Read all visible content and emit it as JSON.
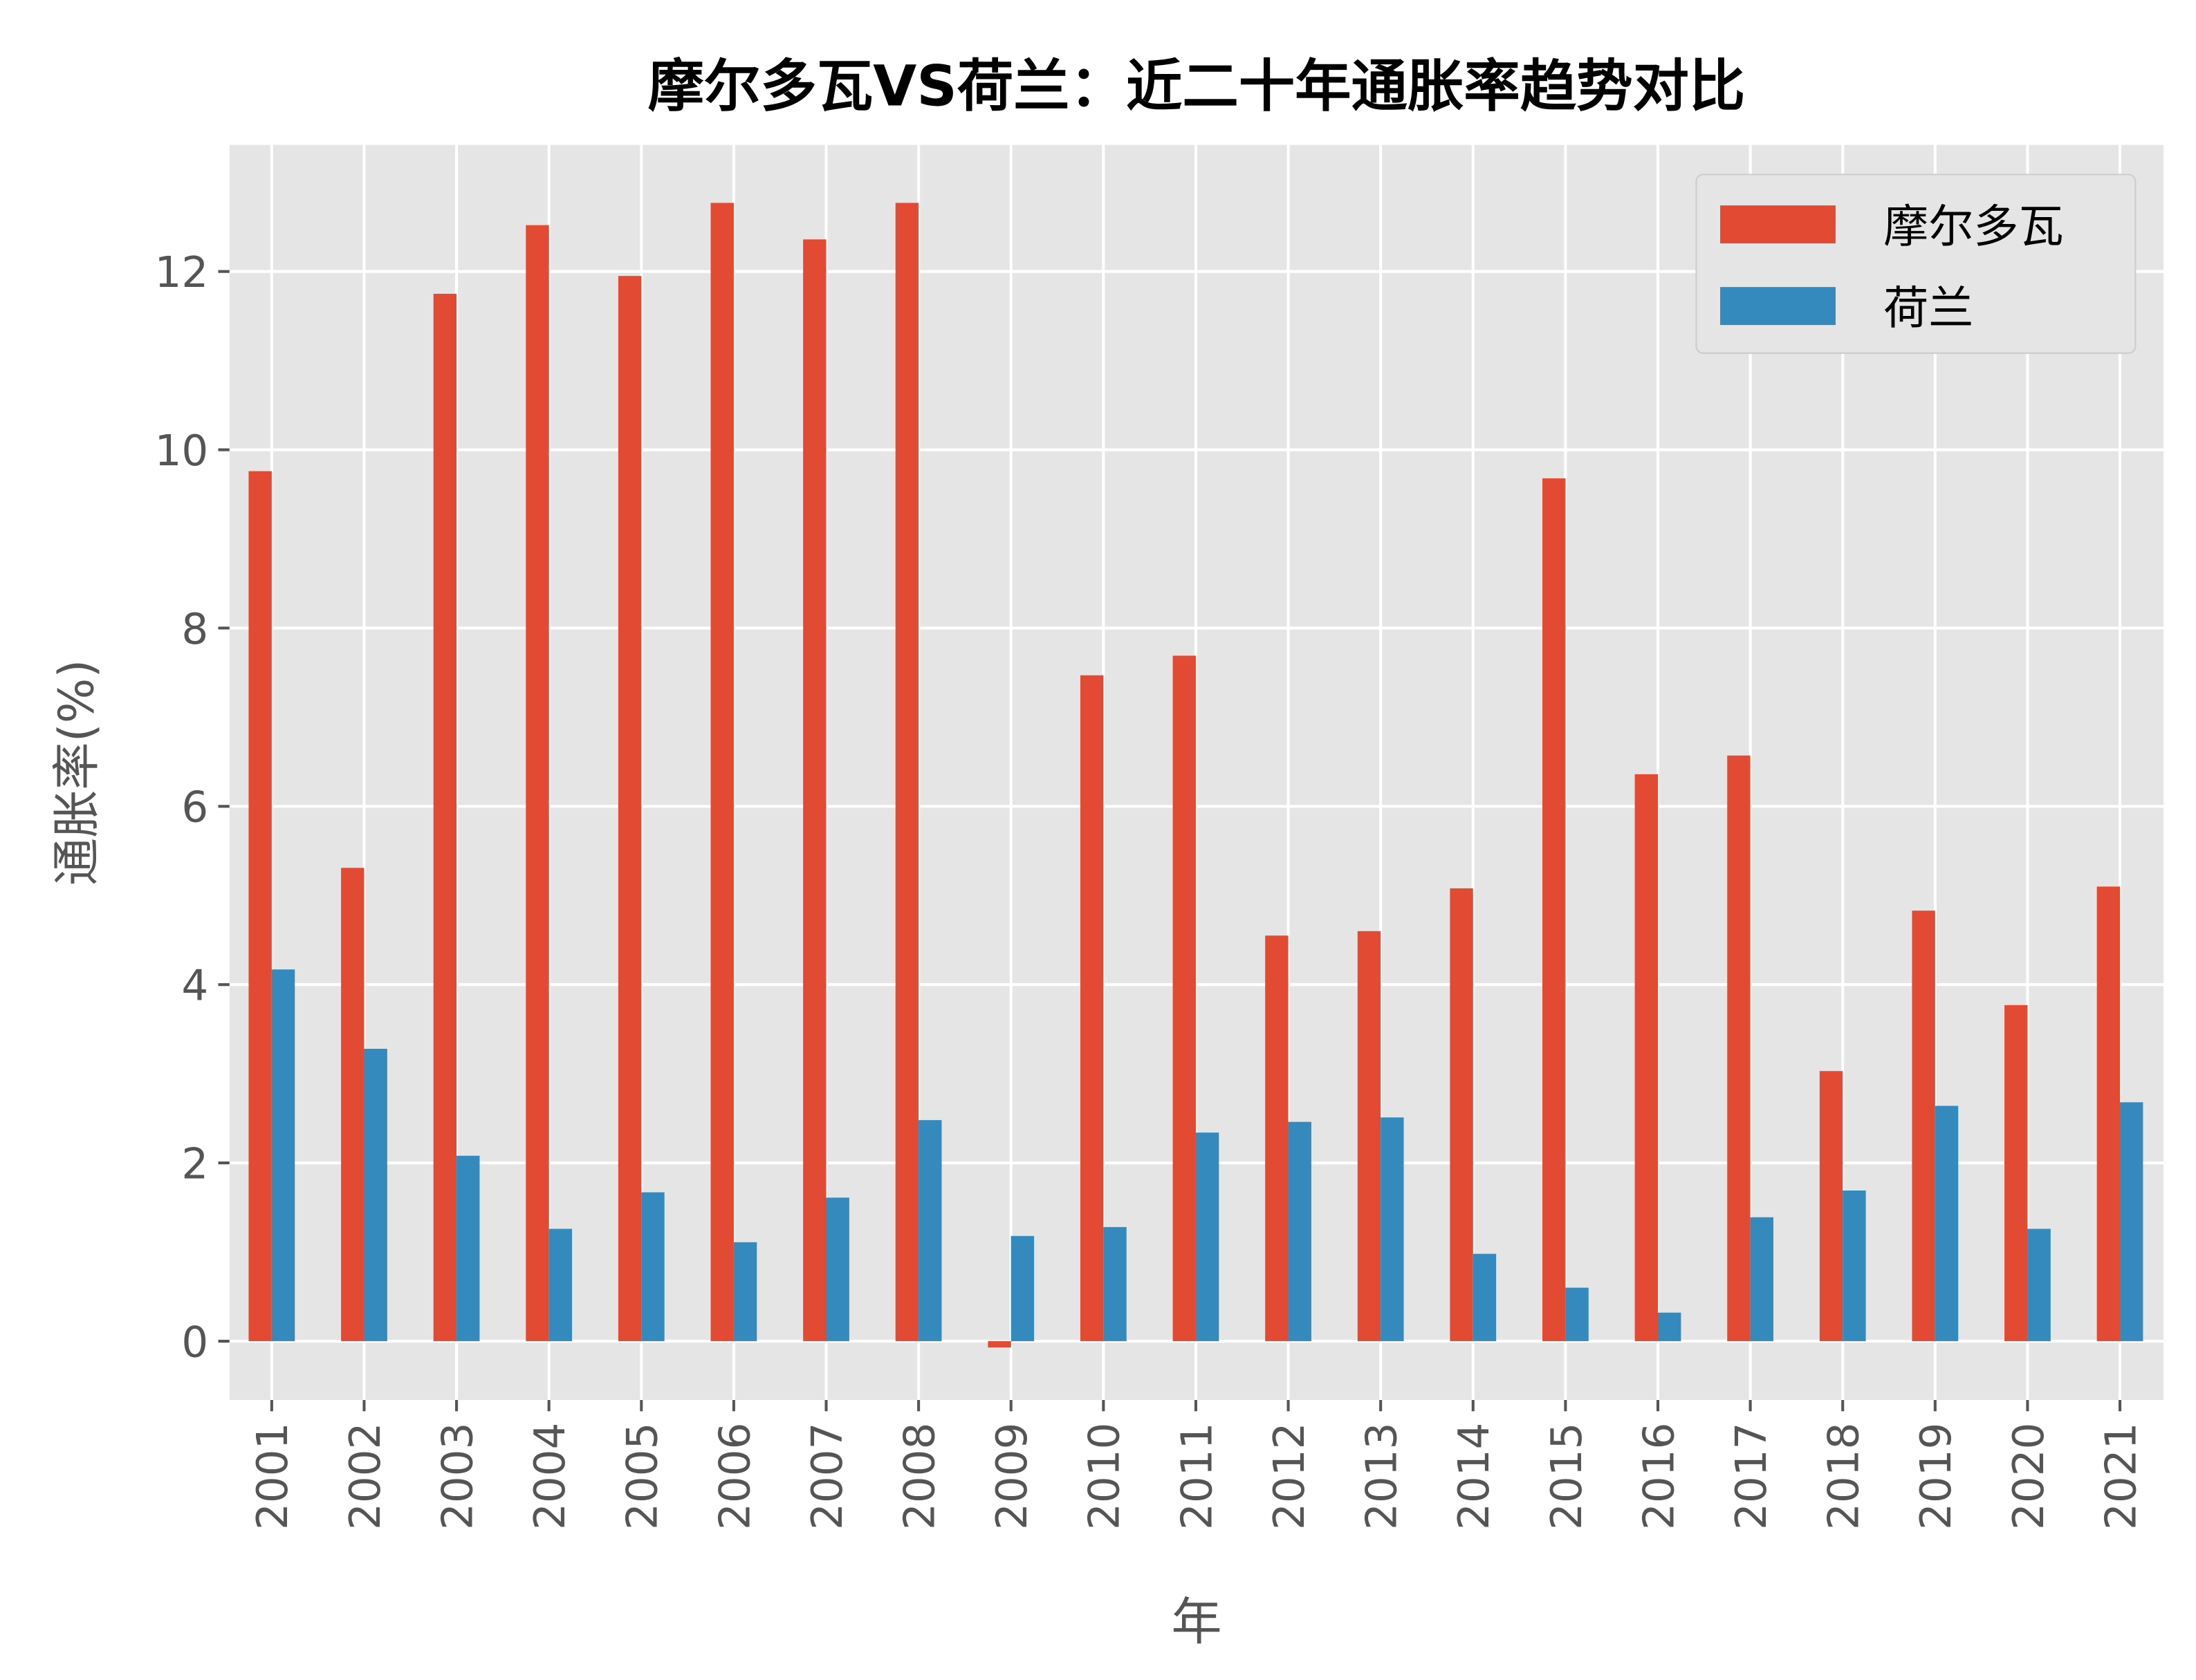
{
  "chart_data": {
    "type": "bar",
    "title": "摩尔多瓦VS荷兰：近二十年通胀率趋势对比",
    "xlabel": "年",
    "ylabel": "通胀率(%)",
    "categories": [
      "2001",
      "2002",
      "2003",
      "2004",
      "2005",
      "2006",
      "2007",
      "2008",
      "2009",
      "2010",
      "2011",
      "2012",
      "2013",
      "2014",
      "2015",
      "2016",
      "2017",
      "2018",
      "2019",
      "2020",
      "2021"
    ],
    "series": [
      {
        "name": "摩尔多瓦",
        "color": "#E24A33",
        "values": [
          9.76,
          5.31,
          11.75,
          12.52,
          11.95,
          12.77,
          12.36,
          12.77,
          -0.07,
          7.47,
          7.69,
          4.55,
          4.6,
          5.08,
          9.68,
          6.36,
          6.57,
          3.03,
          4.83,
          3.77,
          5.1
        ]
      },
      {
        "name": "荷兰",
        "color": "#348ABD",
        "values": [
          4.17,
          3.28,
          2.08,
          1.26,
          1.67,
          1.11,
          1.61,
          2.48,
          1.18,
          1.28,
          2.34,
          2.46,
          2.51,
          0.98,
          0.6,
          0.32,
          1.39,
          1.69,
          2.64,
          1.26,
          2.68
        ]
      }
    ],
    "ylim": [
      -0.66,
      13.42
    ],
    "yticks": [
      0,
      2,
      4,
      6,
      8,
      10,
      12
    ],
    "grid": true,
    "legend": "top-right",
    "background": "#E5E5E5"
  }
}
